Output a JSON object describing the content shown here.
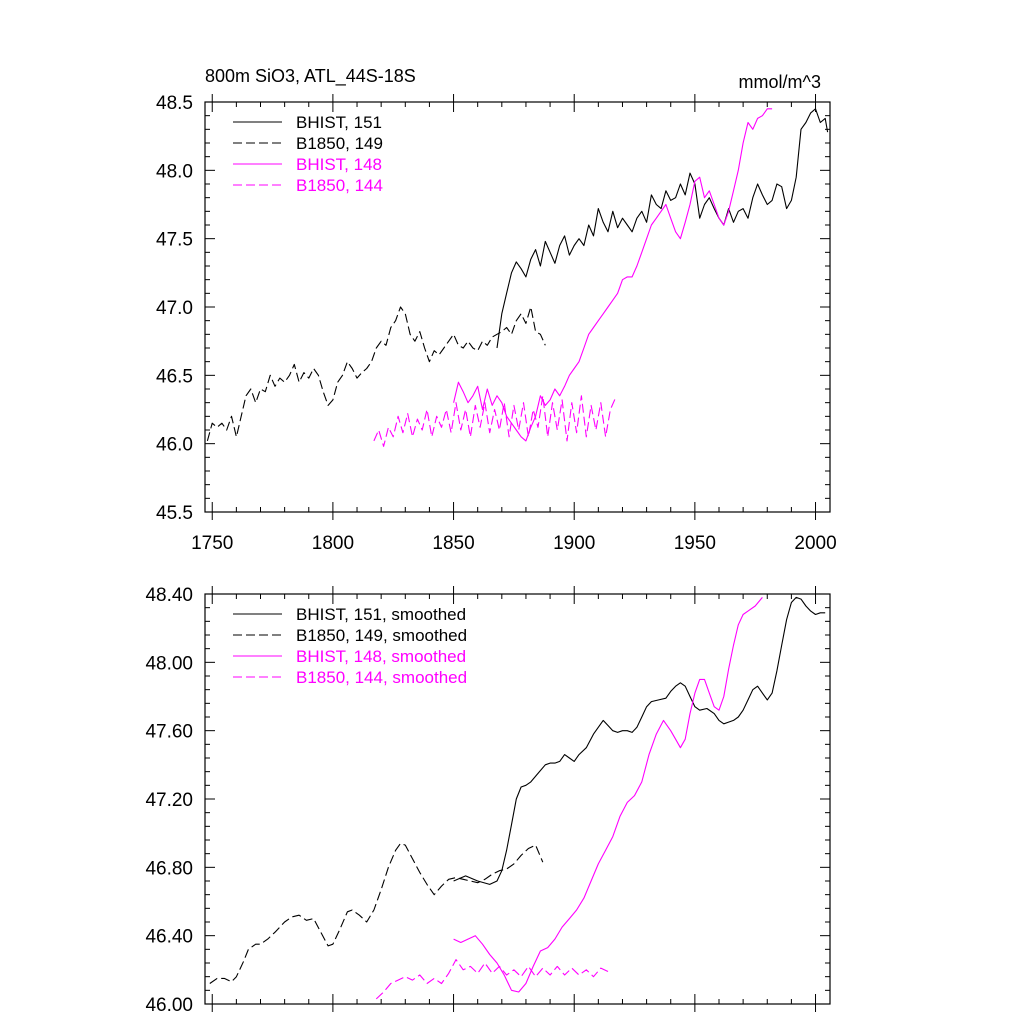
{
  "chart_data": [
    {
      "type": "line",
      "title": "800m SiO3, ATL_44S-18S",
      "units": "mmol/m^3",
      "xlim": [
        1747,
        2006
      ],
      "ylim": [
        45.5,
        48.5
      ],
      "x_ticks": [
        "1750",
        "1800",
        "1850",
        "1900",
        "1950",
        "2000"
      ],
      "y_ticks": [
        "45.5",
        "46.0",
        "46.5",
        "47.0",
        "47.5",
        "48.0",
        "48.5"
      ],
      "grid": false,
      "legend_position": "top-left",
      "series": [
        {
          "name": "BHIST, 151",
          "color": "#000000",
          "dash": "solid",
          "x": [
            1868,
            1870,
            1872,
            1874,
            1876,
            1878,
            1880,
            1882,
            1884,
            1886,
            1888,
            1890,
            1892,
            1894,
            1896,
            1898,
            1900,
            1902,
            1904,
            1906,
            1908,
            1910,
            1912,
            1914,
            1916,
            1918,
            1920,
            1922,
            1924,
            1926,
            1928,
            1930,
            1932,
            1934,
            1936,
            1938,
            1940,
            1942,
            1944,
            1946,
            1948,
            1950,
            1952,
            1954,
            1956,
            1958,
            1960,
            1962,
            1964,
            1966,
            1968,
            1970,
            1972,
            1974,
            1976,
            1978,
            1980,
            1982,
            1984,
            1986,
            1988,
            1990,
            1992,
            1994,
            1996,
            1998,
            2000,
            2002,
            2004,
            2005
          ],
          "values": [
            46.7,
            46.95,
            47.1,
            47.25,
            47.33,
            47.28,
            47.22,
            47.35,
            47.42,
            47.3,
            47.48,
            47.4,
            47.32,
            47.45,
            47.52,
            47.38,
            47.45,
            47.5,
            47.45,
            47.6,
            47.52,
            47.72,
            47.62,
            47.55,
            47.7,
            47.58,
            47.65,
            47.6,
            47.55,
            47.65,
            47.7,
            47.62,
            47.82,
            47.75,
            47.72,
            47.85,
            47.78,
            47.8,
            47.9,
            47.82,
            47.98,
            47.9,
            47.65,
            47.75,
            47.8,
            47.72,
            47.65,
            47.6,
            47.72,
            47.62,
            47.7,
            47.72,
            47.65,
            47.8,
            47.9,
            47.82,
            47.75,
            47.78,
            47.9,
            47.88,
            47.72,
            47.78,
            47.95,
            48.3,
            48.35,
            48.42,
            48.45,
            48.35,
            48.38,
            48.28
          ]
        },
        {
          "name": "B1850, 149",
          "color": "#000000",
          "dash": "dashed",
          "x": [
            1748,
            1750,
            1752,
            1754,
            1756,
            1758,
            1760,
            1762,
            1764,
            1766,
            1768,
            1770,
            1772,
            1774,
            1776,
            1778,
            1780,
            1782,
            1784,
            1786,
            1788,
            1790,
            1792,
            1794,
            1796,
            1798,
            1800,
            1802,
            1804,
            1806,
            1808,
            1810,
            1812,
            1814,
            1816,
            1818,
            1820,
            1822,
            1824,
            1826,
            1828,
            1830,
            1832,
            1834,
            1836,
            1838,
            1840,
            1842,
            1844,
            1846,
            1848,
            1850,
            1852,
            1854,
            1856,
            1858,
            1860,
            1862,
            1864,
            1866,
            1868,
            1870,
            1872,
            1874,
            1876,
            1878,
            1880,
            1882,
            1884,
            1886,
            1888
          ],
          "values": [
            46.02,
            46.15,
            46.12,
            46.15,
            46.1,
            46.2,
            46.05,
            46.2,
            46.35,
            46.4,
            46.3,
            46.4,
            46.38,
            46.5,
            46.42,
            46.48,
            46.45,
            46.5,
            46.58,
            46.45,
            46.52,
            46.48,
            46.55,
            46.5,
            46.38,
            46.28,
            46.32,
            46.45,
            46.5,
            46.6,
            46.55,
            46.48,
            46.52,
            46.55,
            46.6,
            46.7,
            46.75,
            46.72,
            46.85,
            46.9,
            47.0,
            46.95,
            46.8,
            46.75,
            46.82,
            46.7,
            46.6,
            46.68,
            46.65,
            46.7,
            46.75,
            46.8,
            46.72,
            46.7,
            46.75,
            46.7,
            46.68,
            46.75,
            46.72,
            46.78,
            46.8,
            46.82,
            46.85,
            46.8,
            46.9,
            46.95,
            46.88,
            47.0,
            46.82,
            46.8,
            46.72
          ]
        },
        {
          "name": "BHIST, 148",
          "color": "#ff00ff",
          "dash": "solid",
          "x": [
            1850,
            1852,
            1854,
            1856,
            1858,
            1860,
            1862,
            1864,
            1866,
            1868,
            1870,
            1872,
            1874,
            1876,
            1878,
            1880,
            1882,
            1884,
            1886,
            1888,
            1890,
            1892,
            1894,
            1896,
            1898,
            1900,
            1902,
            1904,
            1906,
            1908,
            1910,
            1912,
            1914,
            1916,
            1918,
            1920,
            1922,
            1924,
            1926,
            1928,
            1930,
            1932,
            1934,
            1936,
            1938,
            1940,
            1942,
            1944,
            1946,
            1948,
            1950,
            1952,
            1954,
            1956,
            1958,
            1960,
            1962,
            1964,
            1966,
            1968,
            1970,
            1972,
            1974,
            1976,
            1978,
            1980,
            1982
          ],
          "values": [
            46.3,
            46.45,
            46.38,
            46.3,
            46.35,
            46.42,
            46.25,
            46.4,
            46.28,
            46.35,
            46.3,
            46.2,
            46.15,
            46.1,
            46.05,
            46.02,
            46.12,
            46.2,
            46.35,
            46.28,
            46.32,
            46.4,
            46.35,
            46.42,
            46.5,
            46.55,
            46.6,
            46.7,
            46.8,
            46.85,
            46.9,
            46.95,
            47.0,
            47.05,
            47.1,
            47.2,
            47.22,
            47.22,
            47.3,
            47.4,
            47.5,
            47.6,
            47.65,
            47.7,
            47.75,
            47.65,
            47.55,
            47.5,
            47.62,
            47.75,
            47.92,
            47.95,
            47.8,
            47.85,
            47.75,
            47.65,
            47.6,
            47.7,
            47.85,
            48.0,
            48.2,
            48.35,
            48.3,
            48.38,
            48.4,
            48.45,
            48.45
          ]
        },
        {
          "name": "B1850, 144",
          "color": "#ff00ff",
          "dash": "dashed",
          "x": [
            1817,
            1819,
            1821,
            1823,
            1825,
            1827,
            1829,
            1831,
            1833,
            1835,
            1837,
            1839,
            1841,
            1843,
            1845,
            1847,
            1849,
            1851,
            1853,
            1855,
            1857,
            1859,
            1861,
            1863,
            1865,
            1867,
            1869,
            1871,
            1873,
            1875,
            1877,
            1879,
            1881,
            1883,
            1885,
            1887,
            1889,
            1891,
            1893,
            1895,
            1897,
            1899,
            1901,
            1903,
            1905,
            1907,
            1909,
            1911,
            1913,
            1915,
            1917
          ],
          "values": [
            46.02,
            46.1,
            45.98,
            46.12,
            46.05,
            46.2,
            46.08,
            46.22,
            46.05,
            46.18,
            46.1,
            46.25,
            46.05,
            46.2,
            46.12,
            46.25,
            46.08,
            46.3,
            46.1,
            46.25,
            46.05,
            46.28,
            46.12,
            46.3,
            46.08,
            46.25,
            46.1,
            46.3,
            46.05,
            46.28,
            46.1,
            46.3,
            46.05,
            46.25,
            46.12,
            46.35,
            46.05,
            46.3,
            46.1,
            46.32,
            46.02,
            46.3,
            46.08,
            46.35,
            46.05,
            46.28,
            46.1,
            46.3,
            46.05,
            46.25,
            46.33
          ]
        }
      ]
    },
    {
      "type": "line",
      "title": "",
      "xlim": [
        1747,
        2006
      ],
      "ylim": [
        46.0,
        48.4
      ],
      "x_ticks": [],
      "y_ticks": [
        "46.00",
        "46.40",
        "46.80",
        "47.20",
        "47.60",
        "48.00",
        "48.40"
      ],
      "grid": false,
      "legend_position": "top-left",
      "series": [
        {
          "name": "BHIST, 151, smoothed",
          "color": "#000000",
          "dash": "solid",
          "x": [
            1850,
            1855,
            1860,
            1865,
            1868,
            1870,
            1872,
            1874,
            1876,
            1878,
            1880,
            1882,
            1885,
            1888,
            1890,
            1892,
            1894,
            1896,
            1898,
            1900,
            1902,
            1905,
            1908,
            1910,
            1912,
            1914,
            1916,
            1918,
            1920,
            1922,
            1924,
            1926,
            1928,
            1930,
            1932,
            1935,
            1938,
            1940,
            1942,
            1944,
            1946,
            1948,
            1950,
            1952,
            1955,
            1958,
            1960,
            1962,
            1964,
            1966,
            1968,
            1970,
            1972,
            1974,
            1976,
            1978,
            1980,
            1982,
            1984,
            1986,
            1988,
            1990,
            1992,
            1994,
            1996,
            1998,
            2000,
            2002,
            2004
          ],
          "values": [
            46.72,
            46.75,
            46.72,
            46.7,
            46.72,
            46.78,
            46.9,
            47.05,
            47.2,
            47.27,
            47.28,
            47.3,
            47.35,
            47.4,
            47.41,
            47.41,
            47.42,
            47.46,
            47.44,
            47.42,
            47.46,
            47.5,
            47.58,
            47.62,
            47.66,
            47.63,
            47.6,
            47.59,
            47.6,
            47.6,
            47.59,
            47.62,
            47.68,
            47.74,
            47.77,
            47.78,
            47.79,
            47.83,
            47.86,
            47.88,
            47.86,
            47.8,
            47.74,
            47.72,
            47.73,
            47.7,
            47.66,
            47.64,
            47.65,
            47.66,
            47.68,
            47.72,
            47.78,
            47.84,
            47.86,
            47.82,
            47.78,
            47.82,
            47.95,
            48.1,
            48.25,
            48.35,
            48.38,
            48.37,
            48.33,
            48.3,
            48.28,
            48.29,
            48.29
          ]
        },
        {
          "name": "B1850, 149, smoothed",
          "color": "#000000",
          "dash": "dashed",
          "x": [
            1749,
            1752,
            1755,
            1758,
            1760,
            1763,
            1765,
            1768,
            1770,
            1773,
            1776,
            1780,
            1783,
            1786,
            1789,
            1792,
            1795,
            1798,
            1800,
            1803,
            1806,
            1808,
            1811,
            1814,
            1817,
            1820,
            1823,
            1826,
            1828,
            1830,
            1833,
            1836,
            1839,
            1842,
            1845,
            1848,
            1851,
            1854,
            1857,
            1860,
            1863,
            1866,
            1869,
            1872,
            1875,
            1878,
            1881,
            1884,
            1887
          ],
          "values": [
            46.12,
            46.15,
            46.15,
            46.13,
            46.16,
            46.25,
            46.32,
            46.35,
            46.35,
            46.38,
            46.42,
            46.48,
            46.51,
            46.52,
            46.49,
            46.5,
            46.42,
            46.34,
            46.35,
            46.44,
            46.54,
            46.55,
            46.52,
            46.48,
            46.55,
            46.67,
            46.8,
            46.9,
            46.94,
            46.93,
            46.85,
            46.77,
            46.7,
            46.64,
            46.69,
            46.73,
            46.74,
            46.73,
            46.72,
            46.71,
            46.73,
            46.76,
            46.78,
            46.79,
            46.82,
            46.87,
            46.91,
            46.93,
            46.83
          ]
        },
        {
          "name": "BHIST, 148, smoothed",
          "color": "#ff00ff",
          "dash": "solid",
          "x": [
            1850,
            1853,
            1856,
            1859,
            1862,
            1865,
            1868,
            1871,
            1874,
            1877,
            1880,
            1883,
            1886,
            1889,
            1892,
            1895,
            1898,
            1901,
            1904,
            1907,
            1910,
            1913,
            1916,
            1919,
            1922,
            1925,
            1928,
            1931,
            1934,
            1937,
            1940,
            1942,
            1944,
            1946,
            1948,
            1950,
            1952,
            1954,
            1956,
            1958,
            1960,
            1962,
            1964,
            1966,
            1968,
            1970,
            1972,
            1975,
            1978
          ],
          "values": [
            46.38,
            46.36,
            46.38,
            46.4,
            46.35,
            46.29,
            46.24,
            46.17,
            46.08,
            46.07,
            46.12,
            46.22,
            46.31,
            46.33,
            46.38,
            46.45,
            46.5,
            46.55,
            46.62,
            46.72,
            46.82,
            46.9,
            46.98,
            47.1,
            47.18,
            47.22,
            47.3,
            47.46,
            47.58,
            47.66,
            47.6,
            47.55,
            47.5,
            47.55,
            47.7,
            47.82,
            47.9,
            47.9,
            47.82,
            47.74,
            47.72,
            47.8,
            47.96,
            48.1,
            48.22,
            48.28,
            48.3,
            48.33,
            48.38
          ]
        },
        {
          "name": "B1850, 144, smoothed",
          "color": "#ff00ff",
          "dash": "dashed",
          "x": [
            1818,
            1821,
            1824,
            1827,
            1830,
            1833,
            1836,
            1839,
            1842,
            1845,
            1848,
            1851,
            1854,
            1857,
            1860,
            1863,
            1866,
            1869,
            1872,
            1875,
            1878,
            1881,
            1884,
            1887,
            1890,
            1893,
            1896,
            1899,
            1902,
            1905,
            1908,
            1911,
            1914
          ],
          "values": [
            46.03,
            46.07,
            46.12,
            46.14,
            46.16,
            46.14,
            46.17,
            46.12,
            46.15,
            46.12,
            46.18,
            46.26,
            46.2,
            46.22,
            46.18,
            46.24,
            46.18,
            46.22,
            46.17,
            46.2,
            46.16,
            46.22,
            46.16,
            46.21,
            46.17,
            46.22,
            46.17,
            46.21,
            46.17,
            46.2,
            46.16,
            46.21,
            46.19
          ]
        }
      ]
    }
  ]
}
